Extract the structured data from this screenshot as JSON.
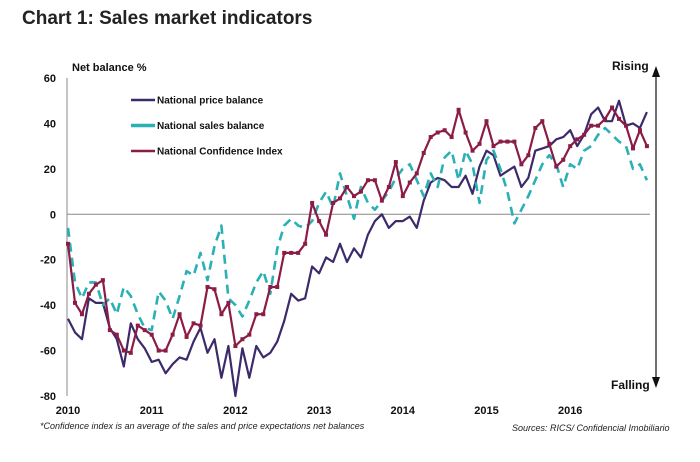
{
  "chart_data": {
    "type": "line",
    "title": "Chart 1: Sales market indicators",
    "ylabel": "Net balance %",
    "ylim": [
      -80,
      60
    ],
    "yticks": [
      "60",
      "40",
      "20",
      "0",
      "-20",
      "-40",
      "-60",
      "-80"
    ],
    "xticks": [
      "2010",
      "2011",
      "2012",
      "2013",
      "2014",
      "2015",
      "2016"
    ],
    "grid": false,
    "legend_placement": "top-left",
    "direction_labels": {
      "top": "Rising",
      "bottom": "Falling"
    },
    "footnote": "*Confidence index is an average of the sales and price expectations net balances",
    "source": "Sources: RICS/ Confidencial  Imobiliario",
    "x": [
      "2010-01",
      "2010-02",
      "2010-03",
      "2010-04",
      "2010-05",
      "2010-06",
      "2010-07",
      "2010-08",
      "2010-09",
      "2010-10",
      "2010-11",
      "2010-12",
      "2011-01",
      "2011-02",
      "2011-03",
      "2011-04",
      "2011-05",
      "2011-06",
      "2011-07",
      "2011-08",
      "2011-09",
      "2011-10",
      "2011-11",
      "2011-12",
      "2012-01",
      "2012-02",
      "2012-03",
      "2012-04",
      "2012-05",
      "2012-06",
      "2012-07",
      "2012-08",
      "2012-09",
      "2012-10",
      "2012-11",
      "2012-12",
      "2013-01",
      "2013-02",
      "2013-03",
      "2013-04",
      "2013-05",
      "2013-06",
      "2013-07",
      "2013-08",
      "2013-09",
      "2013-10",
      "2013-11",
      "2013-12",
      "2014-01",
      "2014-02",
      "2014-03",
      "2014-04",
      "2014-05",
      "2014-06",
      "2014-07",
      "2014-08",
      "2014-09",
      "2014-10",
      "2014-11",
      "2014-12",
      "2015-01",
      "2015-02",
      "2015-03",
      "2015-04",
      "2015-05",
      "2015-06",
      "2015-07",
      "2015-08",
      "2015-09",
      "2015-10",
      "2015-11",
      "2015-12",
      "2016-01",
      "2016-02",
      "2016-03",
      "2016-04",
      "2016-05",
      "2016-06",
      "2016-07",
      "2016-08",
      "2016-09",
      "2016-10",
      "2016-11",
      "2016-12"
    ],
    "series": [
      {
        "name": "National price balance",
        "color": "#3d2a6b",
        "style": "solid",
        "values": [
          -46,
          -52,
          -55,
          -37,
          -39,
          -39,
          -50,
          -55,
          -67,
          -48,
          -55,
          -59,
          -65,
          -64,
          -70,
          -66,
          -63,
          -64,
          -56,
          -50,
          -61,
          -55,
          -72,
          -58,
          -80,
          -59,
          -72,
          -58,
          -63,
          -61,
          -56,
          -47,
          -35,
          -38,
          -37,
          -23,
          -26,
          -19,
          -21,
          -13,
          -21,
          -15,
          -19,
          -9,
          -3,
          0,
          -6,
          -3,
          -3,
          -1,
          -6,
          6,
          14,
          16,
          15,
          12,
          12,
          17,
          9,
          21,
          28,
          26,
          17,
          19,
          21,
          12,
          16,
          28,
          29,
          30,
          33,
          34,
          37,
          30,
          35,
          44,
          47,
          41,
          41,
          50,
          39,
          40,
          38,
          45
        ]
      },
      {
        "name": "National sales balance",
        "color": "#2ab0b5",
        "style": "dashed",
        "values": [
          -6,
          -30,
          -37,
          -30,
          -30,
          -40,
          -37,
          -44,
          -32,
          -36,
          -44,
          -50,
          -51,
          -34,
          -38,
          -46,
          -36,
          -25,
          -27,
          -17,
          -29,
          -14,
          -5,
          -37,
          -40,
          -45,
          -38,
          -30,
          -25,
          -35,
          -15,
          -5,
          -2,
          -5,
          -6,
          -3,
          5,
          10,
          3,
          18,
          8,
          -2,
          12,
          5,
          2,
          6,
          10,
          16,
          20,
          22,
          15,
          8,
          18,
          12,
          25,
          28,
          15,
          28,
          22,
          5,
          24,
          28,
          20,
          10,
          -4,
          2,
          8,
          15,
          22,
          26,
          22,
          12,
          22,
          20,
          28,
          30,
          35,
          38,
          35,
          32,
          30,
          20,
          22,
          15
        ]
      },
      {
        "name": "National Confidence Index",
        "color": "#8b1c46",
        "style": "solid-markers",
        "values": [
          -13,
          -39,
          -44,
          -35,
          -31,
          -29,
          -51,
          -53,
          -60,
          -61,
          -49,
          -51,
          -53,
          -60,
          -60,
          -53,
          -44,
          -54,
          -48,
          -49,
          -32,
          -33,
          -44,
          -39,
          -58,
          -55,
          -53,
          -44,
          -44,
          -32,
          -32,
          -17,
          -17,
          -17,
          -13,
          5,
          -3,
          -9,
          5,
          7,
          12,
          8,
          10,
          15,
          15,
          6,
          12,
          23,
          8,
          14,
          18,
          27,
          34,
          36,
          37,
          34,
          46,
          36,
          28,
          31,
          41,
          30,
          32,
          32,
          32,
          22,
          26,
          38,
          41,
          31,
          21,
          24,
          30,
          33,
          35,
          39,
          39,
          42,
          47,
          42,
          39,
          29,
          37,
          30
        ]
      }
    ]
  }
}
